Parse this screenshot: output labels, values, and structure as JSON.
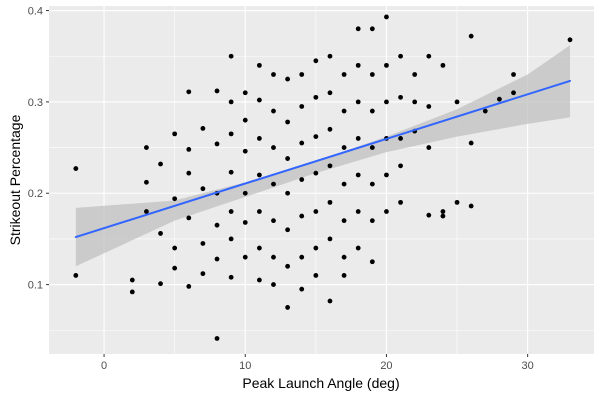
{
  "chart_data": {
    "type": "scatter",
    "title": "",
    "xlabel": "Peak Launch Angle (deg)",
    "ylabel": "Strikeout Percentage",
    "xlim": [
      -3.9,
      34.7
    ],
    "ylim": [
      0.024,
      0.405
    ],
    "x_ticks": [
      0,
      10,
      20,
      30
    ],
    "x_tick_labels": [
      "0",
      "10",
      "20",
      "30"
    ],
    "y_ticks": [
      0.1,
      0.2,
      0.3,
      0.4
    ],
    "y_tick_labels": [
      "0.1",
      "0.2",
      "0.3",
      "0.4"
    ],
    "grid": true,
    "colors": {
      "panel_background": "#ebebeb",
      "grid_line": "#ffffff",
      "points": "#000000",
      "fit_line": "#3366ff",
      "confidence_band": "#c0c0c0"
    },
    "fit_line": {
      "x": [
        -2,
        33
      ],
      "y": [
        0.152,
        0.323
      ]
    },
    "confidence_band": {
      "x": [
        -2,
        5,
        10,
        15,
        20,
        25,
        30,
        33
      ],
      "lower": [
        0.12,
        0.17,
        0.196,
        0.222,
        0.245,
        0.262,
        0.276,
        0.283
      ],
      "upper": [
        0.184,
        0.192,
        0.212,
        0.235,
        0.262,
        0.292,
        0.33,
        0.362
      ]
    },
    "points": [
      [
        -2,
        0.227
      ],
      [
        -2,
        0.11
      ],
      [
        2,
        0.105
      ],
      [
        2,
        0.092
      ],
      [
        3,
        0.25
      ],
      [
        3,
        0.212
      ],
      [
        3,
        0.18
      ],
      [
        4,
        0.232
      ],
      [
        4,
        0.156
      ],
      [
        4,
        0.101
      ],
      [
        5,
        0.265
      ],
      [
        5,
        0.194
      ],
      [
        5,
        0.14
      ],
      [
        5,
        0.118
      ],
      [
        6,
        0.311
      ],
      [
        6,
        0.248
      ],
      [
        6,
        0.222
      ],
      [
        6,
        0.173
      ],
      [
        6,
        0.098
      ],
      [
        7,
        0.271
      ],
      [
        7,
        0.205
      ],
      [
        7,
        0.145
      ],
      [
        7,
        0.112
      ],
      [
        8,
        0.312
      ],
      [
        8,
        0.254
      ],
      [
        8,
        0.2
      ],
      [
        8,
        0.165
      ],
      [
        8,
        0.128
      ],
      [
        8,
        0.041
      ],
      [
        9,
        0.35
      ],
      [
        9,
        0.3
      ],
      [
        9,
        0.265
      ],
      [
        9,
        0.223
      ],
      [
        9,
        0.18
      ],
      [
        9,
        0.15
      ],
      [
        9,
        0.108
      ],
      [
        10,
        0.31
      ],
      [
        10,
        0.28
      ],
      [
        10,
        0.246
      ],
      [
        10,
        0.2
      ],
      [
        10,
        0.168
      ],
      [
        10,
        0.13
      ],
      [
        11,
        0.34
      ],
      [
        11,
        0.302
      ],
      [
        11,
        0.26
      ],
      [
        11,
        0.22
      ],
      [
        11,
        0.18
      ],
      [
        11,
        0.14
      ],
      [
        11,
        0.105
      ],
      [
        12,
        0.33
      ],
      [
        12,
        0.29
      ],
      [
        12,
        0.25
      ],
      [
        12,
        0.21
      ],
      [
        12,
        0.17
      ],
      [
        12,
        0.13
      ],
      [
        12,
        0.1
      ],
      [
        13,
        0.325
      ],
      [
        13,
        0.278
      ],
      [
        13,
        0.238
      ],
      [
        13,
        0.2
      ],
      [
        13,
        0.16
      ],
      [
        13,
        0.12
      ],
      [
        13,
        0.075
      ],
      [
        14,
        0.33
      ],
      [
        14,
        0.295
      ],
      [
        14,
        0.255
      ],
      [
        14,
        0.215
      ],
      [
        14,
        0.175
      ],
      [
        14,
        0.13
      ],
      [
        14,
        0.095
      ],
      [
        15,
        0.345
      ],
      [
        15,
        0.305
      ],
      [
        15,
        0.262
      ],
      [
        15,
        0.222
      ],
      [
        15,
        0.18
      ],
      [
        15,
        0.14
      ],
      [
        15,
        0.11
      ],
      [
        16,
        0.35
      ],
      [
        16,
        0.31
      ],
      [
        16,
        0.27
      ],
      [
        16,
        0.23
      ],
      [
        16,
        0.19
      ],
      [
        16,
        0.15
      ],
      [
        16,
        0.082
      ],
      [
        17,
        0.33
      ],
      [
        17,
        0.29
      ],
      [
        17,
        0.25
      ],
      [
        17,
        0.21
      ],
      [
        17,
        0.17
      ],
      [
        17,
        0.13
      ],
      [
        17,
        0.11
      ],
      [
        18,
        0.38
      ],
      [
        18,
        0.34
      ],
      [
        18,
        0.3
      ],
      [
        18,
        0.26
      ],
      [
        18,
        0.22
      ],
      [
        18,
        0.18
      ],
      [
        18,
        0.14
      ],
      [
        19,
        0.38
      ],
      [
        19,
        0.33
      ],
      [
        19,
        0.29
      ],
      [
        19,
        0.25
      ],
      [
        19,
        0.21
      ],
      [
        19,
        0.17
      ],
      [
        19,
        0.125
      ],
      [
        20,
        0.393
      ],
      [
        20,
        0.34
      ],
      [
        20,
        0.3
      ],
      [
        20,
        0.26
      ],
      [
        20,
        0.22
      ],
      [
        20,
        0.18
      ],
      [
        21,
        0.35
      ],
      [
        21,
        0.305
      ],
      [
        21,
        0.26
      ],
      [
        21,
        0.23
      ],
      [
        21,
        0.19
      ],
      [
        22,
        0.33
      ],
      [
        22,
        0.3
      ],
      [
        22,
        0.268
      ],
      [
        23,
        0.35
      ],
      [
        23,
        0.295
      ],
      [
        23,
        0.25
      ],
      [
        23,
        0.176
      ],
      [
        24,
        0.34
      ],
      [
        24,
        0.18
      ],
      [
        24,
        0.175
      ],
      [
        25,
        0.3
      ],
      [
        25,
        0.19
      ],
      [
        26,
        0.372
      ],
      [
        26,
        0.255
      ],
      [
        26,
        0.186
      ],
      [
        27,
        0.29
      ],
      [
        28,
        0.303
      ],
      [
        29,
        0.33
      ],
      [
        29,
        0.31
      ],
      [
        33,
        0.368
      ]
    ]
  }
}
